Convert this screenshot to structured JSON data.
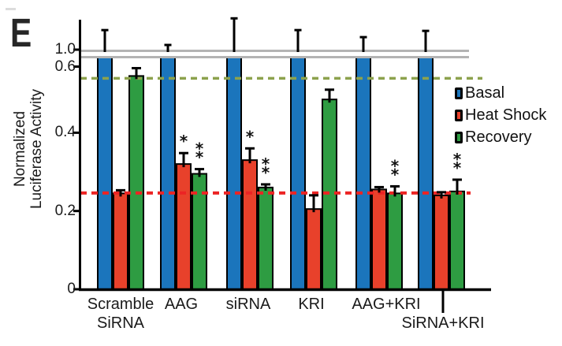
{
  "panel": {
    "label": "E"
  },
  "colors": {
    "basal_blue": "#1B75BC",
    "heat_shock_red": "#E8412B",
    "recovery_green": "#2E9C42",
    "recovery_ref_dash": "#8CA24D",
    "heat_shock_ref_dash": "#EC2424",
    "axis_break_gray": "#B3B3B3",
    "bar_outline": "#000000",
    "text": "#1A1A1A"
  },
  "chart_data": {
    "type": "bar",
    "subtype": "grouped_bar_with_axis_break",
    "ylabel": "Normalized Luciferase Activity",
    "ylabel_lines": [
      "Normalized",
      "Luciferase Activity"
    ],
    "xlabel": "",
    "grid": false,
    "legend_position": "right",
    "ylim": [
      0,
      1.1
    ],
    "axis_break": {
      "from": 0.6,
      "to": 1.0
    },
    "categories": [
      {
        "line1": "Scramble",
        "line2": "SiRNA",
        "tick": false
      },
      {
        "line1": "AAG",
        "line2": "",
        "tick": false
      },
      {
        "line1": "siRNA",
        "line2": "",
        "tick": false
      },
      {
        "line1": "KRI",
        "line2": "",
        "tick": false
      },
      {
        "line1": "AAG+KRI",
        "line2": "",
        "tick": false
      },
      {
        "line1": "",
        "line2": "SiRNA+KRI",
        "tick": true
      }
    ],
    "series": [
      {
        "name": "Basal",
        "color": "#1B75BC",
        "values": [
          1.0,
          1.0,
          1.0,
          1.0,
          1.0,
          1.0
        ],
        "errors": [
          0.05,
          0.012,
          0.08,
          0.05,
          0.032,
          0.048
        ],
        "sig": [
          "",
          "",
          "",
          "",
          "",
          ""
        ]
      },
      {
        "name": "Heat Shock",
        "color": "#E8412B",
        "values": [
          0.245,
          0.32,
          0.33,
          0.205,
          0.255,
          0.24
        ],
        "errors": [
          0.008,
          0.028,
          0.03,
          0.035,
          0.006,
          0.008
        ],
        "sig": [
          "",
          "*",
          "*",
          "",
          "",
          ""
        ]
      },
      {
        "name": "Recovery",
        "color": "#2E9C42",
        "values": [
          0.545,
          0.295,
          0.26,
          0.485,
          0.245,
          0.25
        ],
        "errors": [
          0.02,
          0.012,
          0.008,
          0.025,
          0.018,
          0.03
        ],
        "sig": [
          "",
          "**",
          "**",
          "",
          "**",
          "**"
        ]
      }
    ],
    "yticks": [
      {
        "label": "1.0",
        "value": 1.0,
        "at_break": true,
        "below_break": false
      },
      {
        "label": "0.6",
        "value": 0.6,
        "at_break": false,
        "below_break": true
      },
      {
        "label": "0.4",
        "value": 0.4,
        "at_break": false,
        "below_break": false
      },
      {
        "label": "0.2",
        "value": 0.2,
        "at_break": false,
        "below_break": false
      },
      {
        "label": "0",
        "value": 0.0,
        "at_break": false,
        "below_break": false
      }
    ],
    "ref_lines": [
      {
        "name": "recovery-reference",
        "value": 0.539,
        "color": "#8CA24D",
        "style": "dashed"
      },
      {
        "name": "heat-shock-reference",
        "value": 0.246,
        "color": "#EC2424",
        "style": "dashed"
      }
    ]
  }
}
